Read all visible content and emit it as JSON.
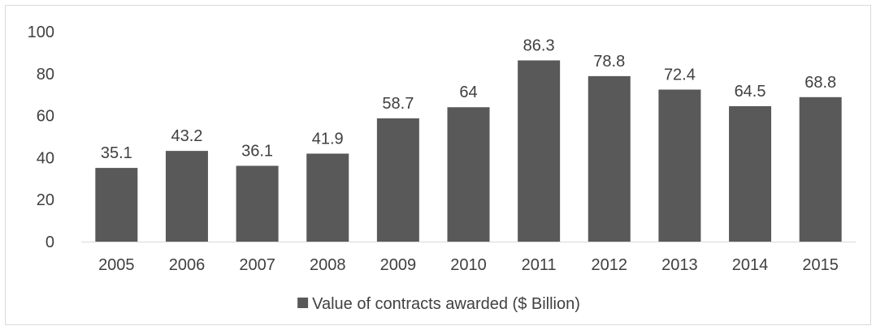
{
  "chart_data": {
    "type": "bar",
    "categories": [
      "2005",
      "2006",
      "2007",
      "2008",
      "2009",
      "2010",
      "2011",
      "2012",
      "2013",
      "2014",
      "2015"
    ],
    "series": [
      {
        "name": "Value of contracts awarded ($ Billion)",
        "values": [
          35.1,
          43.2,
          36.1,
          41.9,
          58.7,
          64,
          86.3,
          78.8,
          72.4,
          64.5,
          68.8
        ],
        "labels": [
          "35.1",
          "43.2",
          "36.1",
          "41.9",
          "58.7",
          "64",
          "86.3",
          "78.8",
          "72.4",
          "64.5",
          "68.8"
        ]
      }
    ],
    "yticks": [
      "0",
      "20",
      "40",
      "60",
      "80",
      "100"
    ],
    "ylim": [
      0,
      100
    ],
    "grid": false,
    "legend": "bottom",
    "colors": {
      "bar": "#595959",
      "text": "#404040",
      "axis": "#d9d9d9",
      "border": "#d9d9d9"
    }
  }
}
